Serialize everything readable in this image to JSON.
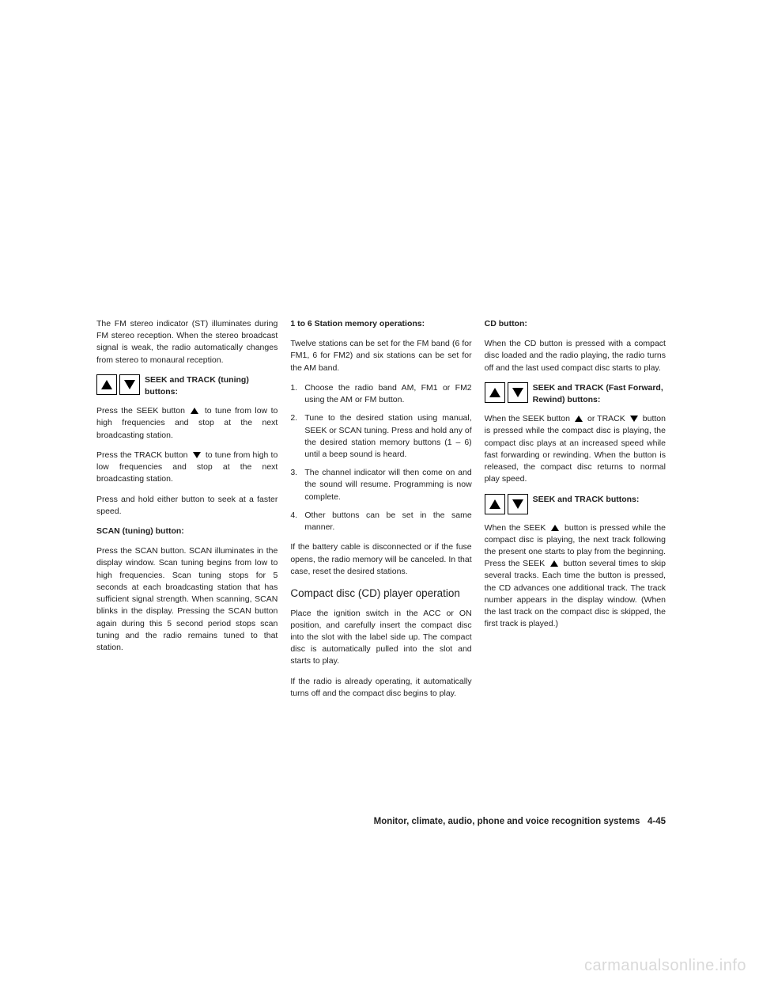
{
  "col1": {
    "p1": "The FM stereo indicator (ST) illuminates during FM stereo reception. When the stereo broadcast signal is weak, the radio automatically changes from stereo to monaural reception.",
    "icon1_label": "SEEK and TRACK (tuning) buttons:",
    "p2a": "Press the SEEK button ",
    "p2b": " to tune from low to high frequencies and stop at the next broadcasting station.",
    "p3a": "Press the TRACK button ",
    "p3b": " to tune from high to low frequencies and stop at the next broadcasting station.",
    "p4": "Press and hold either button to seek at a faster speed.",
    "h_scan": "SCAN (tuning) button:",
    "p5": "Press the SCAN button. SCAN illuminates in the display window. Scan tuning begins from low to high frequencies. Scan tuning stops for 5 seconds at each broadcasting station that has sufficient signal strength. When scanning, SCAN blinks in the display. Pressing the SCAN button again during this 5 second period stops scan tuning and the radio remains tuned to that station."
  },
  "col2": {
    "h_mem": "1 to 6 Station memory operations:",
    "p1": "Twelve stations can be set for the FM band (6 for FM1, 6 for FM2) and six stations can be set for the AM band.",
    "li1": "Choose the radio band AM, FM1 or FM2 using the AM or FM button.",
    "li2": "Tune to the desired station using manual, SEEK or SCAN tuning. Press and hold any of the desired station memory buttons (1 – 6) until a beep sound is heard.",
    "li3": "The channel indicator will then come on and the sound will resume. Programming is now complete.",
    "li4": "Other buttons can be set in the same manner.",
    "p2": "If the battery cable is disconnected or if the fuse opens, the radio memory will be canceled. In that case, reset the desired stations.",
    "h_cd": "Compact disc (CD) player operation",
    "p3": "Place the ignition switch in the ACC or ON position, and carefully insert the compact disc into the slot with the label side up. The compact disc is automatically pulled into the slot and starts to play.",
    "p4": "If the radio is already operating, it automatically turns off and the compact disc begins to play."
  },
  "col3": {
    "h_cdbtn": "CD button:",
    "p1": "When the CD button is pressed with a compact disc loaded and the radio playing, the radio turns off and the last used compact disc starts to play.",
    "icon1_label": "SEEK and TRACK (Fast Forward, Rewind) buttons:",
    "p2a": "When the SEEK button ",
    "p2b": " or TRACK ",
    "p2c": " button is pressed while the compact disc is playing, the compact disc plays at an increased speed while fast forwarding or rewinding. When the button is released, the compact disc returns to normal play speed.",
    "icon2_label": "SEEK and TRACK buttons:",
    "p3a": "When the SEEK ",
    "p3b": " button is pressed while the compact disc is playing, the next track following the present one starts to play from the beginning. Press the SEEK ",
    "p3c": " button several times to skip several tracks. Each time the button is pressed, the CD advances one additional track. The track number appears in the display window. (When the last track on the compact disc is skipped, the first track is played.)"
  },
  "footer": {
    "section": "Monitor, climate, audio, phone and voice recognition systems",
    "page": "4-45"
  },
  "watermark": "carmanualsonline.info"
}
